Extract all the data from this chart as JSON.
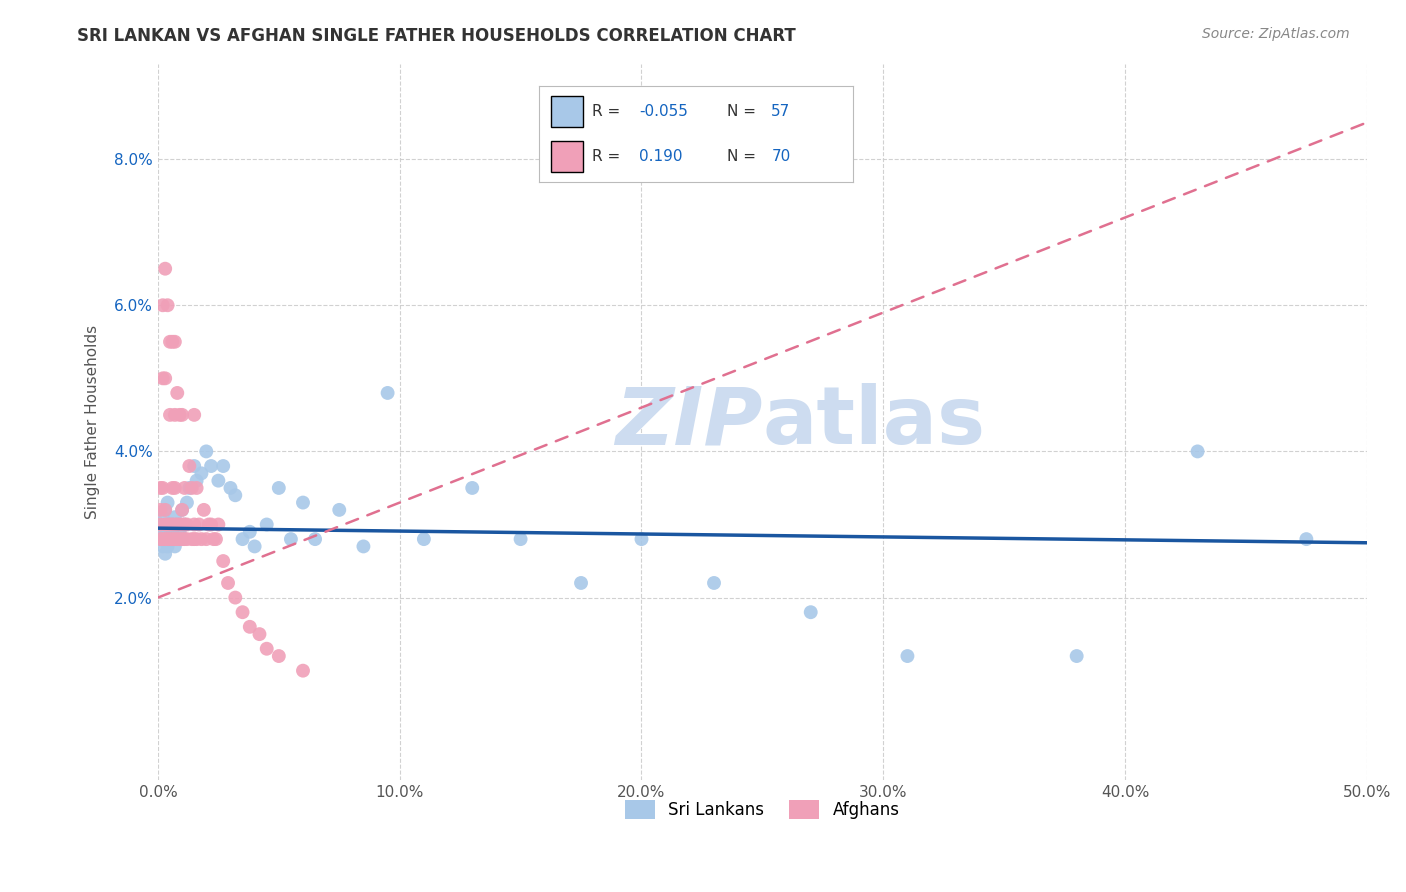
{
  "title": "SRI LANKAN VS AFGHAN SINGLE FATHER HOUSEHOLDS CORRELATION CHART",
  "source": "Source: ZipAtlas.com",
  "ylabel": "Single Father Households",
  "xlim": [
    0.0,
    0.5
  ],
  "ylim": [
    -0.005,
    0.093
  ],
  "xtick_vals": [
    0.0,
    0.1,
    0.2,
    0.3,
    0.4,
    0.5
  ],
  "ytick_vals": [
    0.02,
    0.04,
    0.06,
    0.08
  ],
  "sri_lanka_color": "#a8c8e8",
  "afghan_color": "#f0a0b8",
  "legend_color": "#1565c0",
  "background_color": "#ffffff",
  "grid_color": "#cccccc",
  "watermark_color": "#cddcf0",
  "sri_lanka_line_color": "#1a56a0",
  "afghan_line_color": "#e07090",
  "title_color": "#333333",
  "ylabel_color": "#555555",
  "ytick_color": "#1565c0",
  "xtick_color": "#555555",
  "sri_lanka_points_x": [
    0.001,
    0.001,
    0.002,
    0.002,
    0.002,
    0.003,
    0.003,
    0.003,
    0.004,
    0.004,
    0.004,
    0.005,
    0.005,
    0.005,
    0.006,
    0.006,
    0.006,
    0.007,
    0.007,
    0.008,
    0.009,
    0.01,
    0.01,
    0.011,
    0.012,
    0.013,
    0.015,
    0.016,
    0.018,
    0.02,
    0.022,
    0.025,
    0.027,
    0.03,
    0.032,
    0.035,
    0.038,
    0.04,
    0.045,
    0.05,
    0.055,
    0.06,
    0.065,
    0.075,
    0.085,
    0.095,
    0.11,
    0.13,
    0.15,
    0.175,
    0.2,
    0.23,
    0.27,
    0.31,
    0.38,
    0.43,
    0.475
  ],
  "sri_lanka_points_y": [
    0.028,
    0.03,
    0.027,
    0.029,
    0.031,
    0.026,
    0.029,
    0.032,
    0.027,
    0.03,
    0.033,
    0.028,
    0.03,
    0.029,
    0.028,
    0.03,
    0.029,
    0.027,
    0.031,
    0.03,
    0.029,
    0.028,
    0.032,
    0.03,
    0.033,
    0.035,
    0.038,
    0.036,
    0.037,
    0.04,
    0.038,
    0.036,
    0.038,
    0.035,
    0.034,
    0.028,
    0.029,
    0.027,
    0.03,
    0.035,
    0.028,
    0.033,
    0.028,
    0.032,
    0.027,
    0.048,
    0.028,
    0.035,
    0.028,
    0.022,
    0.028,
    0.022,
    0.018,
    0.012,
    0.012,
    0.04,
    0.028
  ],
  "afghan_points_x": [
    0.001,
    0.001,
    0.001,
    0.001,
    0.002,
    0.002,
    0.002,
    0.002,
    0.003,
    0.003,
    0.003,
    0.003,
    0.003,
    0.004,
    0.004,
    0.004,
    0.005,
    0.005,
    0.005,
    0.005,
    0.006,
    0.006,
    0.006,
    0.006,
    0.007,
    0.007,
    0.007,
    0.007,
    0.007,
    0.008,
    0.008,
    0.008,
    0.009,
    0.009,
    0.009,
    0.01,
    0.01,
    0.01,
    0.01,
    0.011,
    0.011,
    0.011,
    0.012,
    0.012,
    0.013,
    0.014,
    0.014,
    0.015,
    0.015,
    0.015,
    0.016,
    0.016,
    0.017,
    0.018,
    0.019,
    0.02,
    0.021,
    0.022,
    0.023,
    0.024,
    0.025,
    0.027,
    0.029,
    0.032,
    0.035,
    0.038,
    0.042,
    0.045,
    0.05,
    0.06
  ],
  "afghan_points_y": [
    0.028,
    0.03,
    0.032,
    0.035,
    0.028,
    0.035,
    0.05,
    0.06,
    0.028,
    0.03,
    0.032,
    0.05,
    0.065,
    0.028,
    0.03,
    0.06,
    0.028,
    0.03,
    0.045,
    0.055,
    0.028,
    0.03,
    0.035,
    0.055,
    0.028,
    0.03,
    0.035,
    0.045,
    0.055,
    0.028,
    0.03,
    0.048,
    0.028,
    0.03,
    0.045,
    0.028,
    0.03,
    0.032,
    0.045,
    0.028,
    0.03,
    0.035,
    0.028,
    0.03,
    0.038,
    0.028,
    0.035,
    0.028,
    0.03,
    0.045,
    0.028,
    0.035,
    0.03,
    0.028,
    0.032,
    0.028,
    0.03,
    0.03,
    0.028,
    0.028,
    0.03,
    0.025,
    0.022,
    0.02,
    0.018,
    0.016,
    0.015,
    0.013,
    0.012,
    0.01
  ],
  "sl_line_x0": 0.0,
  "sl_line_x1": 0.5,
  "sl_line_y0": 0.0295,
  "sl_line_y1": 0.0275,
  "af_line_x0": 0.0,
  "af_line_x1": 0.5,
  "af_line_y0": 0.02,
  "af_line_y1": 0.085
}
